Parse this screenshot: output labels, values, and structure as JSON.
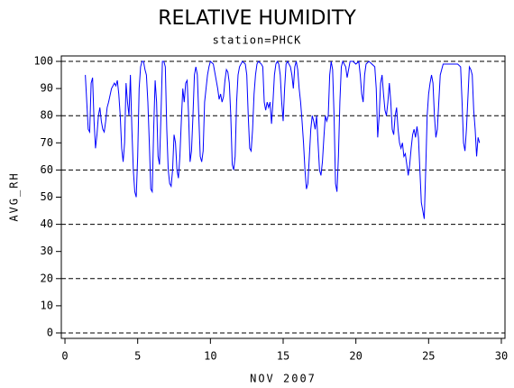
{
  "chart_data": {
    "type": "line",
    "title": "RELATIVE HUMIDITY",
    "subtitle": "station=PHCK",
    "x_label": "NOV 2007",
    "y_label": "AVG_RH",
    "color": "#0000ff",
    "xlim": [
      -0.25,
      30.25
    ],
    "ylim": [
      -2,
      102
    ],
    "xticks": [
      0,
      5,
      10,
      15,
      20,
      25,
      30
    ],
    "yticks": [
      0,
      10,
      20,
      30,
      40,
      50,
      60,
      70,
      80,
      90,
      100
    ],
    "reference_lines": [
      0,
      20,
      40,
      60,
      80,
      100
    ],
    "x": [
      1.4,
      1.5,
      1.6,
      1.7,
      1.8,
      1.9,
      2.0,
      2.1,
      2.2,
      2.3,
      2.4,
      2.5,
      2.6,
      2.7,
      2.8,
      2.9,
      3.0,
      3.2,
      3.4,
      3.5,
      3.6,
      3.7,
      3.8,
      3.9,
      4.0,
      4.1,
      4.2,
      4.3,
      4.4,
      4.5,
      4.6,
      4.7,
      4.8,
      4.9,
      5.0,
      5.1,
      5.2,
      5.3,
      5.4,
      5.5,
      5.6,
      5.7,
      5.8,
      5.9,
      6.0,
      6.1,
      6.2,
      6.3,
      6.4,
      6.5,
      6.6,
      6.7,
      6.8,
      6.9,
      7.0,
      7.1,
      7.2,
      7.3,
      7.4,
      7.5,
      7.6,
      7.7,
      7.8,
      7.9,
      8.0,
      8.1,
      8.2,
      8.3,
      8.4,
      8.5,
      8.6,
      8.7,
      8.8,
      8.9,
      9.0,
      9.1,
      9.2,
      9.3,
      9.4,
      9.5,
      9.6,
      9.7,
      9.8,
      9.9,
      10.0,
      10.2,
      10.4,
      10.5,
      10.6,
      10.7,
      10.8,
      10.9,
      11.0,
      11.1,
      11.2,
      11.3,
      11.4,
      11.5,
      11.6,
      11.7,
      11.8,
      11.9,
      12.0,
      12.2,
      12.4,
      12.5,
      12.6,
      12.7,
      12.8,
      12.9,
      13.0,
      13.1,
      13.2,
      13.3,
      13.5,
      13.6,
      13.7,
      13.8,
      13.9,
      14.0,
      14.1,
      14.2,
      14.3,
      14.4,
      14.5,
      14.6,
      14.7,
      14.8,
      14.9,
      15.0,
      15.1,
      15.2,
      15.3,
      15.5,
      15.6,
      15.7,
      15.8,
      15.9,
      16.0,
      16.1,
      16.2,
      16.3,
      16.4,
      16.5,
      16.6,
      16.7,
      16.8,
      16.9,
      17.0,
      17.1,
      17.2,
      17.3,
      17.4,
      17.5,
      17.6,
      17.7,
      17.8,
      17.9,
      18.0,
      18.1,
      18.2,
      18.3,
      18.4,
      18.5,
      18.6,
      18.7,
      18.8,
      18.9,
      19.0,
      19.1,
      19.3,
      19.4,
      19.5,
      19.6,
      19.8,
      20.0,
      20.2,
      20.3,
      20.4,
      20.5,
      20.6,
      20.7,
      20.9,
      21.1,
      21.3,
      21.4,
      21.5,
      21.6,
      21.7,
      21.8,
      21.9,
      22.0,
      22.1,
      22.2,
      22.3,
      22.4,
      22.5,
      22.6,
      22.7,
      22.8,
      22.9,
      23.0,
      23.1,
      23.2,
      23.3,
      23.4,
      23.5,
      23.6,
      23.7,
      23.8,
      23.9,
      24.0,
      24.1,
      24.2,
      24.3,
      24.4,
      24.5,
      24.6,
      24.7,
      24.8,
      24.9,
      25.0,
      25.1,
      25.2,
      25.3,
      25.4,
      25.5,
      25.6,
      25.8,
      26.0,
      26.5,
      27.0,
      27.2,
      27.3,
      27.4,
      27.5,
      27.6,
      27.8,
      27.9,
      28.0,
      28.1,
      28.2,
      28.3,
      28.4,
      28.5
    ],
    "values": [
      95,
      85,
      75,
      74,
      92,
      94,
      78,
      68,
      73,
      80,
      83,
      78,
      75,
      74,
      78,
      83,
      85,
      90,
      92,
      91,
      93,
      88,
      80,
      68,
      63,
      70,
      92,
      85,
      80,
      95,
      75,
      60,
      52,
      50,
      65,
      90,
      98,
      100,
      100,
      97,
      95,
      85,
      70,
      53,
      52,
      75,
      93,
      85,
      65,
      62,
      80,
      100,
      100,
      98,
      75,
      60,
      55,
      54,
      60,
      73,
      70,
      60,
      57,
      65,
      78,
      90,
      85,
      92,
      93,
      80,
      63,
      67,
      80,
      95,
      98,
      95,
      80,
      65,
      63,
      67,
      85,
      90,
      95,
      98,
      100,
      99,
      93,
      90,
      86,
      88,
      85,
      87,
      93,
      97,
      96,
      92,
      80,
      62,
      60,
      65,
      85,
      95,
      98,
      100,
      99,
      95,
      80,
      68,
      67,
      75,
      88,
      95,
      99,
      100,
      99,
      98,
      85,
      82,
      85,
      83,
      85,
      77,
      85,
      95,
      99,
      100,
      99,
      95,
      85,
      78,
      90,
      99,
      100,
      98,
      95,
      90,
      98,
      100,
      97,
      90,
      85,
      78,
      70,
      60,
      53,
      55,
      65,
      75,
      80,
      78,
      75,
      80,
      70,
      60,
      58,
      63,
      72,
      80,
      78,
      80,
      95,
      100,
      97,
      80,
      55,
      52,
      65,
      85,
      98,
      100,
      98,
      94,
      97,
      100,
      100,
      99,
      100,
      95,
      88,
      85,
      95,
      99,
      100,
      99,
      98,
      90,
      72,
      80,
      92,
      95,
      88,
      82,
      80,
      85,
      92,
      85,
      75,
      73,
      80,
      83,
      75,
      70,
      68,
      70,
      65,
      66,
      62,
      58,
      62,
      68,
      73,
      75,
      72,
      76,
      72,
      60,
      48,
      45,
      42,
      60,
      80,
      88,
      92,
      95,
      92,
      80,
      72,
      75,
      95,
      99,
      99,
      99,
      98,
      85,
      70,
      67,
      75,
      98,
      97,
      95,
      82,
      75,
      65,
      72,
      70
    ]
  }
}
